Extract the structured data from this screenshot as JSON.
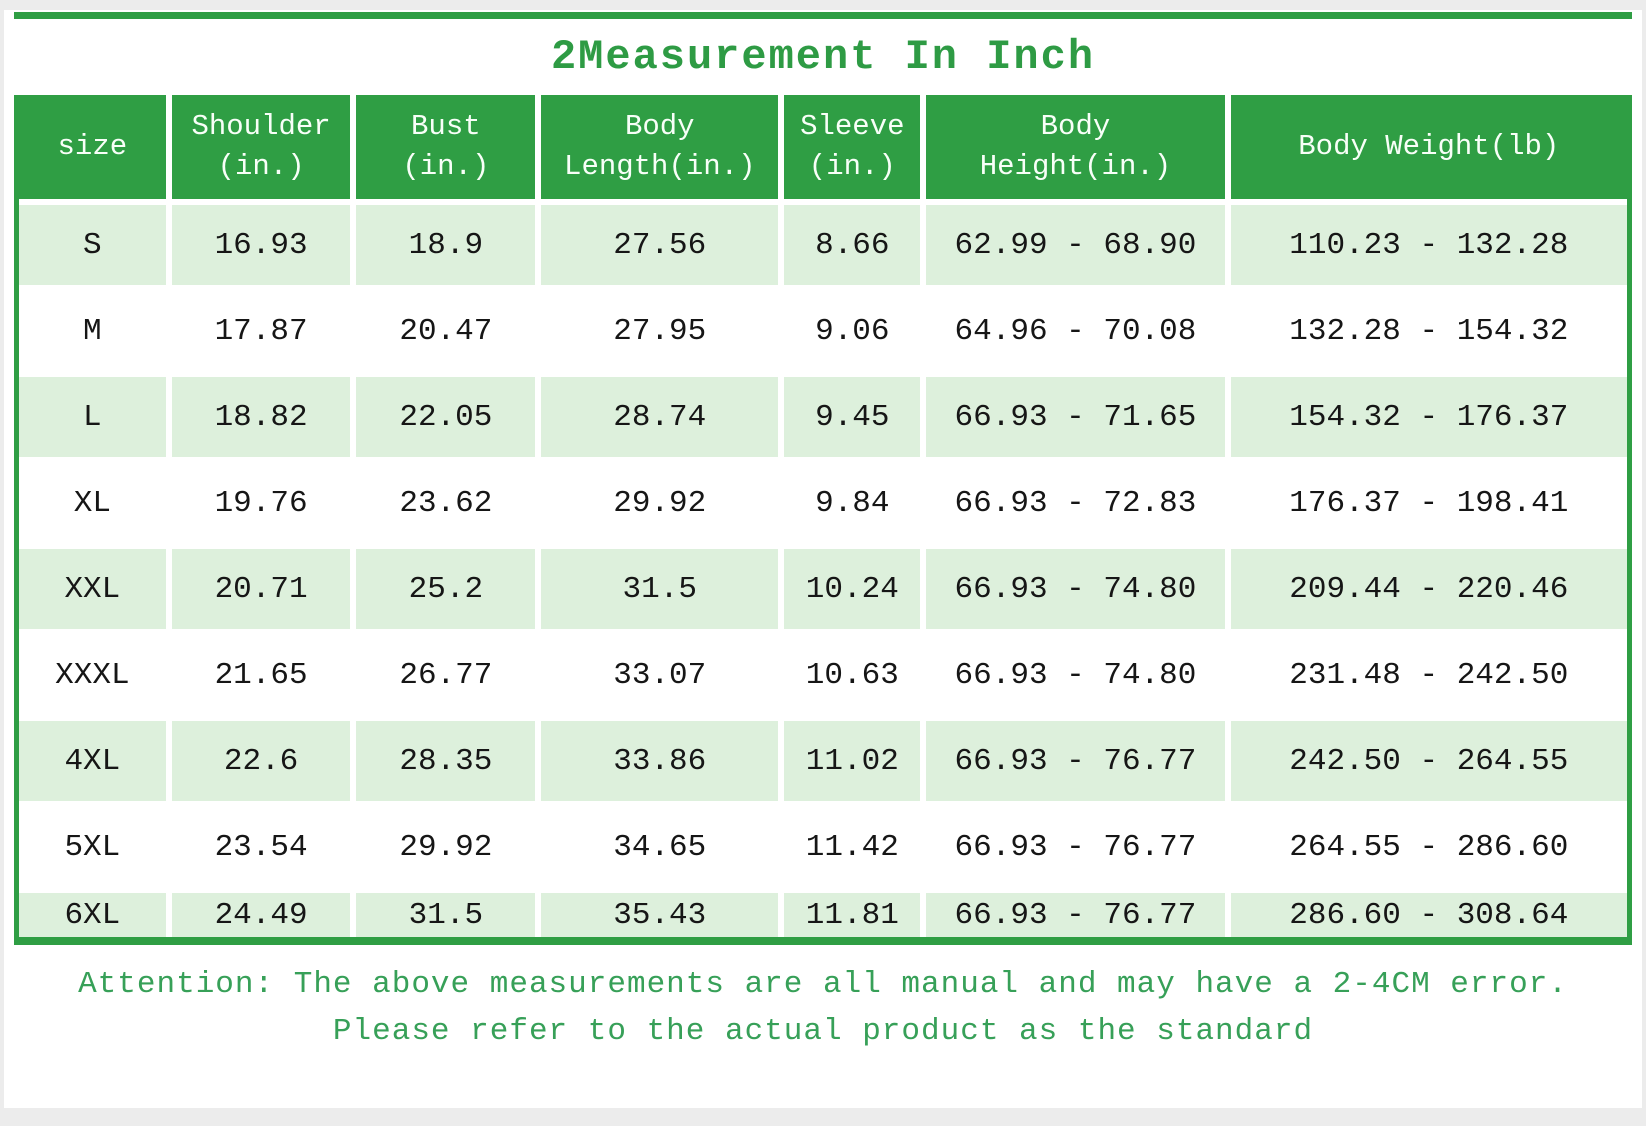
{
  "title": "2Measurement In Inch",
  "colors": {
    "accent_green": "#2f9e44",
    "title_green": "#2e9b44",
    "zebra_row_green": "#ddf0dc",
    "attention_green": "#37a058",
    "header_text": "#f8fff8",
    "body_text": "#161616",
    "page_edge_gray": "#ececec"
  },
  "chart_data": {
    "type": "table",
    "title": "2Measurement In Inch",
    "columns": [
      "size",
      "Shoulder\n(in.)",
      "Bust\n(in.)",
      "Body\nLength(in.)",
      "Sleeve\n(in.)",
      "Body\nHeight(in.)",
      "Body Weight(lb)"
    ],
    "rows": [
      [
        "S",
        "16.93",
        "18.9",
        "27.56",
        "8.66",
        "62.99 - 68.90",
        "110.23 - 132.28"
      ],
      [
        "M",
        "17.87",
        "20.47",
        "27.95",
        "9.06",
        "64.96 - 70.08",
        "132.28 - 154.32"
      ],
      [
        "L",
        "18.82",
        "22.05",
        "28.74",
        "9.45",
        "66.93 - 71.65",
        "154.32 - 176.37"
      ],
      [
        "XL",
        "19.76",
        "23.62",
        "29.92",
        "9.84",
        "66.93 - 72.83",
        "176.37 - 198.41"
      ],
      [
        "XXL",
        "20.71",
        "25.2",
        "31.5",
        "10.24",
        "66.93 - 74.80",
        "209.44 - 220.46"
      ],
      [
        "XXXL",
        "21.65",
        "26.77",
        "33.07",
        "10.63",
        "66.93 - 74.80",
        "231.48 - 242.50"
      ],
      [
        "4XL",
        "22.6",
        "28.35",
        "33.86",
        "11.02",
        "66.93 - 76.77",
        "242.50 - 264.55"
      ],
      [
        "5XL",
        "23.54",
        "29.92",
        "34.65",
        "11.42",
        "66.93 - 76.77",
        "264.55 - 286.60"
      ],
      [
        "6XL",
        "24.49",
        "31.5",
        "35.43",
        "11.81",
        "66.93 - 76.77",
        "286.60 - 308.64"
      ]
    ],
    "layout": {
      "zebra_striping": true,
      "header_background": "#2f9e44",
      "grid_lines": "white gaps between cells"
    }
  },
  "attention": {
    "line1": "Attention: The above measurements are all manual and may have a 2-4CM error.",
    "line2": "Please refer to the actual product as the standard"
  }
}
